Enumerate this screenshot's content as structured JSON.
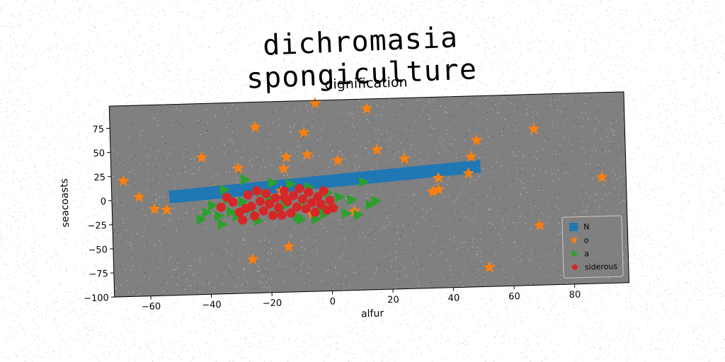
{
  "figure": {
    "suptitle": "dichromasia spongiculture"
  },
  "colors": {
    "axes_bg": "#808080",
    "bar": "#1f77b4",
    "orange": "#ff7f0e",
    "green": "#2ca02c",
    "red": "#d62728"
  },
  "chart_data": {
    "type": "scatter",
    "title": "dignification",
    "xlabel": "alfur",
    "ylabel": "seacoasts",
    "xlim": [
      -72,
      98
    ],
    "ylim": [
      -100,
      98
    ],
    "xticks": [
      -60,
      -40,
      -20,
      0,
      20,
      40,
      60,
      80
    ],
    "yticks": [
      -100,
      -75,
      -50,
      -25,
      0,
      25,
      50,
      75
    ],
    "grid": false,
    "legend_position": "lower right",
    "series": [
      {
        "name": "N",
        "marker": "thick-line",
        "color": "#1f77b4",
        "points": [
          [
            -53,
            2
          ],
          [
            50,
            25
          ]
        ]
      },
      {
        "name": "o",
        "marker": "star",
        "color": "#ff7f0e",
        "points": [
          [
            -68,
            20
          ],
          [
            -63,
            3
          ],
          [
            -58,
            -10
          ],
          [
            -54,
            -11
          ],
          [
            -42,
            42
          ],
          [
            -30,
            30
          ],
          [
            -24,
            72
          ],
          [
            -26,
            -65
          ],
          [
            -15,
            28
          ],
          [
            -14,
            40
          ],
          [
            -14,
            -53
          ],
          [
            -8,
            65
          ],
          [
            -7,
            42
          ],
          [
            -4,
            95
          ],
          [
            3,
            35
          ],
          [
            13,
            88
          ],
          [
            16,
            45
          ],
          [
            25,
            35
          ],
          [
            34,
            0
          ],
          [
            36,
            2
          ],
          [
            36,
            14
          ],
          [
            46,
            18
          ],
          [
            47,
            35
          ],
          [
            49,
            52
          ],
          [
            52,
            -80
          ],
          [
            68,
            62
          ],
          [
            69,
            -38
          ],
          [
            90,
            10
          ],
          [
            -16,
            5
          ],
          [
            -6,
            -20
          ],
          [
            8,
            -18
          ]
        ]
      },
      {
        "name": "a",
        "marker": "triangle-right",
        "color": "#2ca02c",
        "points": [
          [
            -43,
            -22
          ],
          [
            -41,
            -15
          ],
          [
            -39,
            -8
          ],
          [
            -37,
            -19
          ],
          [
            -36,
            -28
          ],
          [
            -35,
            8
          ],
          [
            -34,
            -2
          ],
          [
            -33,
            -15
          ],
          [
            -31,
            -20
          ],
          [
            -29,
            -5
          ],
          [
            -28,
            18
          ],
          [
            -26,
            -12
          ],
          [
            -24,
            -25
          ],
          [
            -23,
            5
          ],
          [
            -20,
            -2
          ],
          [
            -19,
            14
          ],
          [
            -17,
            -18
          ],
          [
            -15,
            -10
          ],
          [
            -13,
            12
          ],
          [
            -11,
            -22
          ],
          [
            -9,
            -6
          ],
          [
            -7,
            8
          ],
          [
            -5,
            -25
          ],
          [
            -3,
            -16
          ],
          [
            -1,
            2
          ],
          [
            1,
            -12
          ],
          [
            3,
            -3
          ],
          [
            5,
            -20
          ],
          [
            7,
            -6
          ],
          [
            9,
            -22
          ],
          [
            11,
            12
          ],
          [
            13,
            -12
          ],
          [
            15,
            -8
          ],
          [
            -10,
            -25
          ],
          [
            -2,
            -20
          ]
        ]
      },
      {
        "name": "siderous",
        "marker": "circle",
        "color": "#d62728",
        "points": [
          [
            -36,
            -10
          ],
          [
            -34,
            0
          ],
          [
            -32,
            -5
          ],
          [
            -30,
            -16
          ],
          [
            -29,
            -24
          ],
          [
            -27,
            2
          ],
          [
            -26,
            -10
          ],
          [
            -25,
            -20
          ],
          [
            -23,
            -5
          ],
          [
            -22,
            -15
          ],
          [
            -21,
            3
          ],
          [
            -20,
            -8
          ],
          [
            -19,
            -20
          ],
          [
            -18,
            -2
          ],
          [
            -17,
            -12
          ],
          [
            -16,
            -20
          ],
          [
            -15,
            5
          ],
          [
            -14,
            -6
          ],
          [
            -13,
            -18
          ],
          [
            -12,
            0
          ],
          [
            -11,
            -12
          ],
          [
            -10,
            7
          ],
          [
            -9,
            -4
          ],
          [
            -8,
            -14
          ],
          [
            -7,
            3
          ],
          [
            -6,
            -8
          ],
          [
            -5,
            -18
          ],
          [
            -4,
            -2
          ],
          [
            -3,
            -10
          ],
          [
            -2,
            4
          ],
          [
            -1,
            -16
          ],
          [
            0,
            -6
          ],
          [
            1,
            -14
          ],
          [
            -28,
            -12
          ],
          [
            -24,
            6
          ],
          [
            -15,
            -2
          ]
        ]
      }
    ]
  }
}
